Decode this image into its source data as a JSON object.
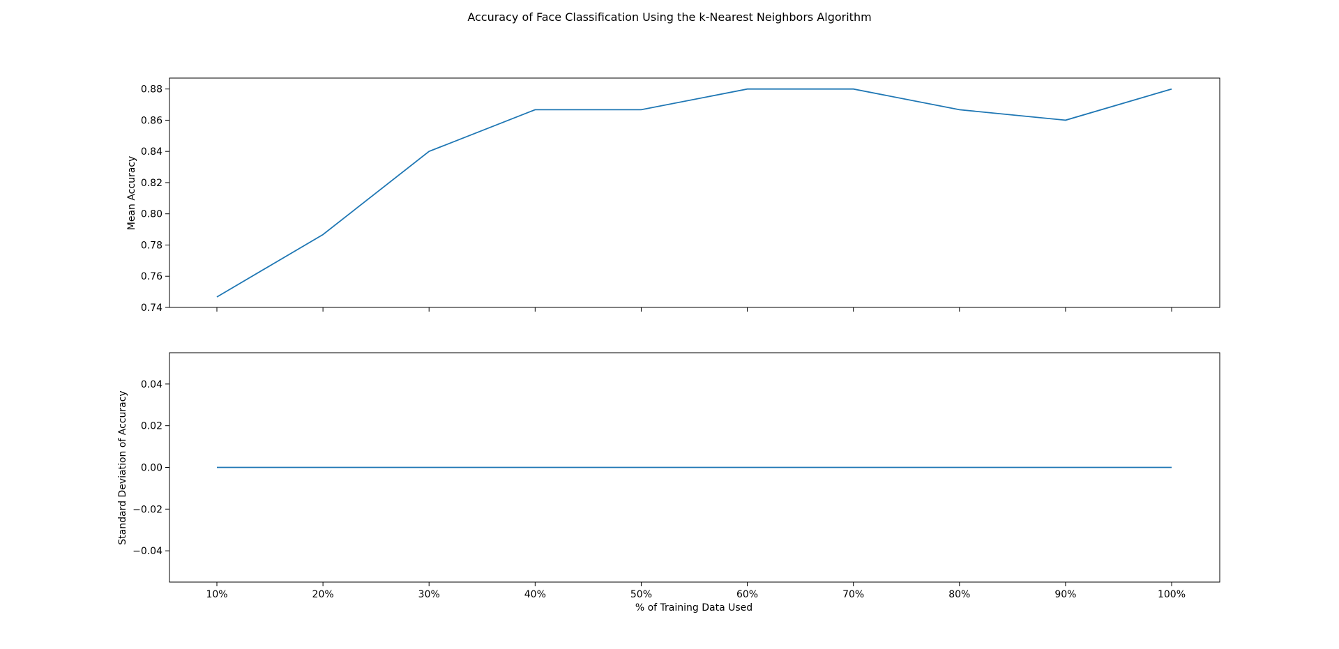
{
  "chart_data": {
    "type": "line",
    "title": "Accuracy of Face Classification Using the k-Nearest Neighbors Algorithm",
    "xlabel": "% of Training Data Used",
    "categories": [
      "10%",
      "20%",
      "30%",
      "40%",
      "50%",
      "60%",
      "70%",
      "80%",
      "90%",
      "100%"
    ],
    "line_color": "#1f77b4",
    "grid": false,
    "subplots": [
      {
        "ylabel": "Mean Accuracy",
        "ylim": [
          0.74,
          0.887
        ],
        "yticks": [
          0.74,
          0.76,
          0.78,
          0.8,
          0.82,
          0.84,
          0.86,
          0.88
        ],
        "ytick_labels": [
          "0.74",
          "0.76",
          "0.78",
          "0.80",
          "0.82",
          "0.84",
          "0.86",
          "0.88"
        ],
        "values": [
          0.7467,
          0.7867,
          0.84,
          0.8667,
          0.8667,
          0.88,
          0.88,
          0.8667,
          0.86,
          0.88
        ]
      },
      {
        "ylabel": "Standard Deviation of Accuracy",
        "ylim": [
          -0.055,
          0.055
        ],
        "yticks": [
          -0.04,
          -0.02,
          0.0,
          0.02,
          0.04
        ],
        "ytick_labels": [
          "−0.04",
          "−0.02",
          "0.00",
          "0.02",
          "0.04"
        ],
        "values": [
          0,
          0,
          0,
          0,
          0,
          0,
          0,
          0,
          0,
          0
        ]
      }
    ]
  }
}
